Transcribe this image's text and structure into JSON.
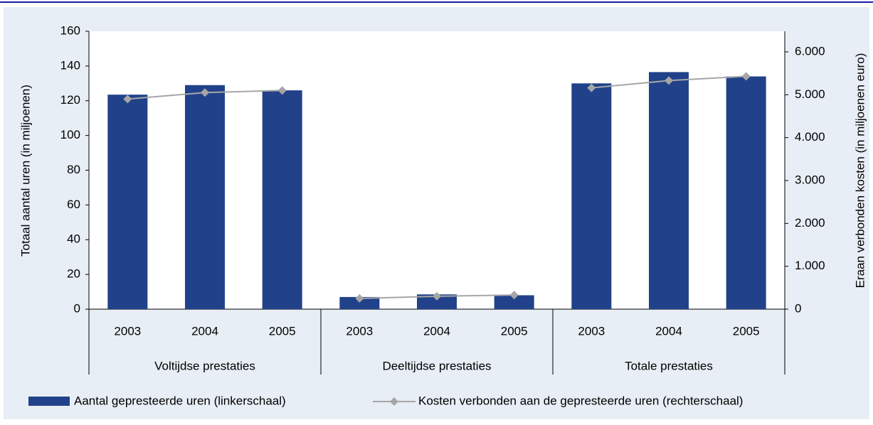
{
  "chart_data": {
    "type": "bar",
    "categories": [
      "2003",
      "2004",
      "2005",
      "2003",
      "2004",
      "2005",
      "2003",
      "2004",
      "2005"
    ],
    "groups": [
      "Voltijdse prestaties",
      "Deeltijdse prestaties",
      "Totale prestaties"
    ],
    "series": [
      {
        "name": "Aantal gepresteerde uren (linkerschaal)",
        "type": "bar",
        "color": "#21428a",
        "values": [
          123.5,
          129,
          126,
          7,
          8.5,
          8,
          130,
          136.5,
          134
        ]
      },
      {
        "name": "Kosten verbonden aan de gepresteerde uren (rechterschaal)",
        "type": "line",
        "axis": "y2",
        "color": "#a6a6a6",
        "values": [
          4900,
          5050,
          5100,
          250,
          300,
          330,
          5160,
          5330,
          5430
        ]
      }
    ],
    "ylabel": "Totaal aantal uren (in miljoenen)",
    "y2label": "Eraan verbonden kosten (in miljoenen euro)",
    "ylim": [
      0,
      160
    ],
    "yticks": [
      0,
      20,
      40,
      60,
      80,
      100,
      120,
      140,
      160
    ],
    "y2lim": [
      0,
      6480
    ],
    "y2ticks": [
      0,
      {
        "value": 1000,
        "label": "1.000"
      },
      {
        "value": 2000,
        "label": "2.000"
      },
      {
        "value": 3000,
        "label": "3.000"
      },
      {
        "value": 4000,
        "label": "4.000"
      },
      {
        "value": 5000,
        "label": "5.000"
      },
      {
        "value": 6000,
        "label": "6.000"
      }
    ],
    "legend": "bottom"
  }
}
